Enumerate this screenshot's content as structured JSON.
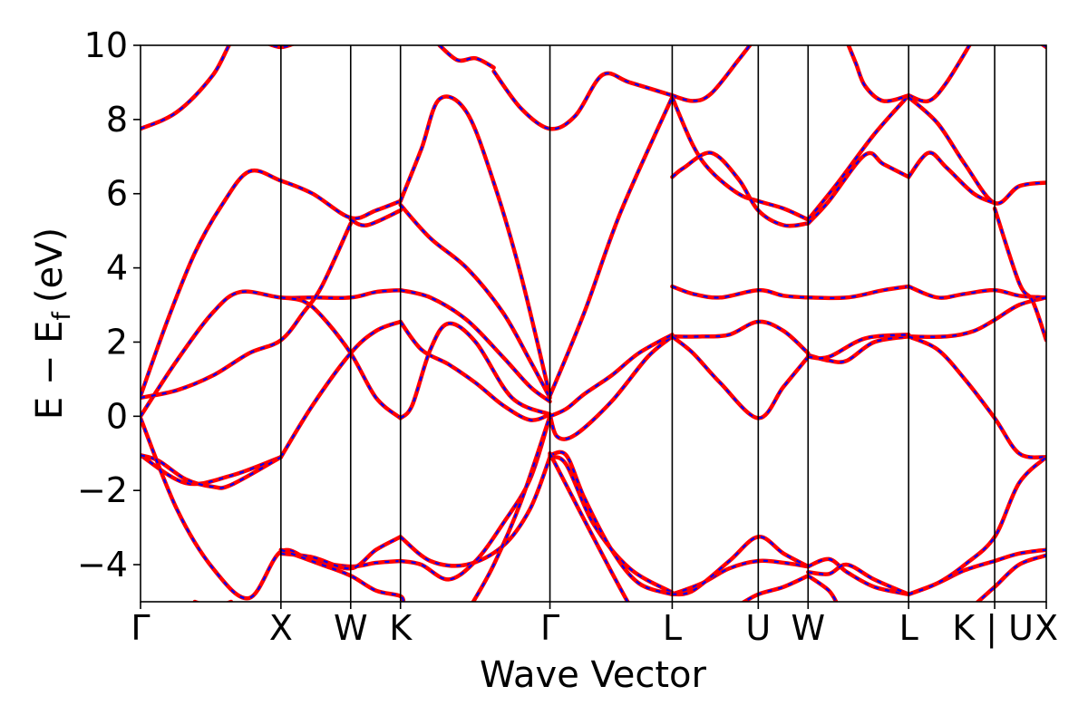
{
  "chart_data": {
    "type": "line",
    "title": "",
    "xlabel": "Wave Vector",
    "ylabel": "E − E",
    "ylabel_subscript": "f",
    "ylabel_unit": "(eV)",
    "ylim": [
      -5,
      10
    ],
    "yticks": [
      -4,
      -2,
      0,
      2,
      4,
      6,
      8,
      10
    ],
    "ytick_labels": [
      "−4",
      "−2",
      "0",
      "2",
      "4",
      "6",
      "8",
      "10"
    ],
    "xlim": [
      0,
      10
    ],
    "kpoints": [
      {
        "label": "Γ",
        "x": 0.0
      },
      {
        "label": "X",
        "x": 1.55
      },
      {
        "label": "W",
        "x": 2.32
      },
      {
        "label": "K",
        "x": 2.87
      },
      {
        "label": "Γ",
        "x": 4.52
      },
      {
        "label": "L",
        "x": 5.87
      },
      {
        "label": "U",
        "x": 6.82
      },
      {
        "label": "W",
        "x": 7.37
      },
      {
        "label": "L",
        "x": 8.48
      },
      {
        "label": "K | U",
        "x": 9.43
      },
      {
        "label": "X",
        "x": 10.0
      }
    ],
    "grid": false,
    "line_colors": {
      "series_a": "#ff0000",
      "series_b": "#0000ff"
    },
    "series": [
      {
        "x": [
          0,
          0.4,
          0.8,
          1.1,
          1.55
        ],
        "y": [
          7.75,
          8.2,
          9.2,
          10.4,
          10.5
        ]
      },
      {
        "x": [
          1.35,
          1.55,
          1.75
        ],
        "y": [
          10.1,
          9.95,
          10.1
        ]
      },
      {
        "x": [
          9.85,
          10.0
        ],
        "y": [
          10.2,
          9.95
        ]
      },
      {
        "x": [
          0,
          0.3,
          0.6,
          0.9,
          1.2,
          1.55,
          1.9,
          2.32,
          2.6,
          2.87
        ],
        "y": [
          0.55,
          2.6,
          4.4,
          5.7,
          6.6,
          6.35,
          6.0,
          5.35,
          5.55,
          5.8
        ]
      },
      {
        "x": [
          2.32,
          2.5,
          2.87
        ],
        "y": [
          5.3,
          5.15,
          5.55
        ]
      },
      {
        "x": [
          0,
          0.4,
          0.8,
          1.1,
          1.55,
          1.9,
          2.32,
          2.6,
          2.87
        ],
        "y": [
          0.0,
          1.5,
          2.8,
          3.35,
          3.2,
          3.2,
          3.2,
          3.35,
          3.4
        ]
      },
      {
        "x": [
          0,
          0.4,
          0.8,
          1.2,
          1.55,
          1.8,
          2.0,
          2.32
        ],
        "y": [
          0.5,
          0.7,
          1.1,
          1.7,
          2.05,
          2.8,
          3.5,
          5.2
        ]
      },
      {
        "x": [
          1.55,
          1.8,
          2.0,
          2.32,
          2.6,
          2.87
        ],
        "y": [
          3.2,
          3.1,
          2.7,
          1.7,
          0.5,
          -0.05
        ]
      },
      {
        "x": [
          1.55,
          1.9,
          2.32,
          2.6,
          2.87
        ],
        "y": [
          -1.1,
          0.3,
          1.7,
          2.3,
          2.55
        ]
      },
      {
        "x": [
          0,
          0.5,
          1.0,
          1.55
        ],
        "y": [
          -1.05,
          -1.8,
          -1.6,
          -1.1
        ]
      },
      {
        "x": [
          0,
          0.2,
          0.5,
          0.8,
          1.0,
          1.55
        ],
        "y": [
          -1.05,
          -1.2,
          -1.7,
          -1.9,
          -1.85,
          -1.1
        ]
      },
      {
        "x": [
          0,
          0.4,
          0.8,
          1.2,
          1.55,
          1.9,
          2.32,
          2.6,
          2.87
        ],
        "y": [
          -0.05,
          -2.5,
          -4.1,
          -4.9,
          -3.65,
          -3.9,
          -4.05,
          -3.95,
          -3.9
        ]
      },
      {
        "x": [
          0.6,
          0.8,
          1.0
        ],
        "y": [
          -5.0,
          -5.15,
          -5.0
        ]
      },
      {
        "x": [
          1.55,
          1.9,
          2.32,
          2.6,
          2.87
        ],
        "y": [
          -3.7,
          -3.8,
          -4.1,
          -3.6,
          -3.25
        ]
      },
      {
        "x": [
          1.55,
          2.0,
          2.32,
          2.6,
          2.87,
          2.9
        ],
        "y": [
          -3.6,
          -4.0,
          -4.3,
          -4.7,
          -4.85,
          -5.1
        ]
      },
      {
        "x": [
          2.87,
          3.1,
          3.3,
          3.6,
          3.9,
          4.2,
          4.52
        ],
        "y": [
          5.8,
          7.2,
          8.55,
          8.2,
          6.3,
          3.8,
          0.55
        ]
      },
      {
        "x": [
          3.3,
          3.5,
          3.7,
          3.9
        ],
        "y": [
          10.0,
          9.6,
          9.65,
          9.4
        ]
      },
      {
        "x": [
          3.9,
          4.2,
          4.52,
          4.8,
          5.1,
          5.4,
          5.87
        ],
        "y": [
          9.3,
          8.3,
          7.75,
          8.1,
          9.2,
          9.0,
          8.65
        ]
      },
      {
        "x": [
          2.87,
          3.2,
          3.6,
          4.0,
          4.3,
          4.52
        ],
        "y": [
          5.7,
          4.8,
          4.0,
          2.8,
          1.5,
          0.5
        ]
      },
      {
        "x": [
          2.87,
          3.2,
          3.6,
          4.0,
          4.3,
          4.52
        ],
        "y": [
          3.4,
          3.2,
          2.6,
          1.6,
          0.8,
          0.4
        ]
      },
      {
        "x": [
          2.87,
          3.1,
          3.4,
          3.7,
          4.0,
          4.3,
          4.52
        ],
        "y": [
          2.55,
          1.8,
          1.4,
          0.9,
          0.3,
          -0.1,
          0.05
        ]
      },
      {
        "x": [
          2.87,
          3.0,
          3.2,
          3.4,
          3.7,
          4.1,
          4.52
        ],
        "y": [
          -0.05,
          0.3,
          1.8,
          2.5,
          2.0,
          0.5,
          0.05
        ]
      },
      {
        "x": [
          2.87,
          3.2,
          3.6,
          4.0,
          4.3,
          4.52
        ],
        "y": [
          -3.25,
          -3.9,
          -4.0,
          -3.5,
          -2.5,
          -1.1
        ]
      },
      {
        "x": [
          2.87,
          3.1,
          3.4,
          3.7,
          4.0,
          4.3,
          4.52
        ],
        "y": [
          -3.9,
          -4.0,
          -4.4,
          -3.9,
          -2.9,
          -1.7,
          0.0
        ]
      },
      {
        "x": [
          3.65,
          3.9,
          4.2,
          4.52
        ],
        "y": [
          -5.1,
          -4.0,
          -2.3,
          0.0
        ]
      },
      {
        "x": [
          4.52,
          4.9,
          5.3,
          5.87
        ],
        "y": [
          0.55,
          2.8,
          5.5,
          8.6
        ]
      },
      {
        "x": [
          4.52,
          4.6,
          4.8,
          5.2,
          5.6,
          5.87
        ],
        "y": [
          0.05,
          -0.55,
          -0.5,
          0.4,
          1.6,
          2.15
        ]
      },
      {
        "x": [
          4.52,
          4.7,
          4.9,
          5.2,
          5.5,
          5.87
        ],
        "y": [
          0.0,
          0.2,
          0.6,
          1.1,
          1.7,
          2.2
        ]
      },
      {
        "x": [
          4.52,
          4.7,
          5.0,
          5.4,
          5.87
        ],
        "y": [
          -1.1,
          -1.3,
          -2.9,
          -4.1,
          -4.75
        ]
      },
      {
        "x": [
          4.52,
          4.7,
          4.9,
          5.2,
          5.5,
          5.87
        ],
        "y": [
          -1.05,
          -1.05,
          -2.2,
          -3.6,
          -4.5,
          -4.8
        ]
      },
      {
        "x": [
          4.52,
          4.9,
          5.2,
          5.4
        ],
        "y": [
          -1.0,
          -2.8,
          -4.2,
          -5.1
        ]
      },
      {
        "x": [
          5.87,
          6.1,
          6.3,
          6.6,
          6.82
        ],
        "y": [
          8.65,
          8.5,
          8.7,
          9.6,
          10.3
        ]
      },
      {
        "x": [
          5.87,
          6.1,
          6.3,
          6.6,
          6.82,
          7.1,
          7.37
        ],
        "y": [
          8.6,
          7.3,
          6.6,
          6.0,
          5.8,
          5.6,
          5.3
        ]
      },
      {
        "x": [
          5.87,
          6.0,
          6.3,
          6.6,
          6.82,
          7.1,
          7.37
        ],
        "y": [
          6.45,
          6.7,
          7.1,
          6.4,
          5.55,
          5.15,
          5.2
        ]
      },
      {
        "x": [
          5.87,
          6.1,
          6.4,
          6.82,
          7.1,
          7.37
        ],
        "y": [
          3.5,
          3.3,
          3.2,
          3.4,
          3.25,
          3.2
        ]
      },
      {
        "x": [
          5.87,
          6.2,
          6.5,
          6.82,
          7.1,
          7.37
        ],
        "y": [
          2.15,
          2.15,
          2.2,
          2.55,
          2.3,
          1.7
        ]
      },
      {
        "x": [
          5.87,
          6.1,
          6.4,
          6.82,
          7.1,
          7.37
        ],
        "y": [
          2.15,
          1.7,
          0.9,
          -0.05,
          0.8,
          1.6
        ]
      },
      {
        "x": [
          5.87,
          6.2,
          6.5,
          6.82,
          7.1,
          7.37
        ],
        "y": [
          -4.8,
          -4.5,
          -4.1,
          -3.9,
          -3.95,
          -4.05
        ]
      },
      {
        "x": [
          5.87,
          6.1,
          6.5,
          6.82,
          7.1,
          7.37
        ],
        "y": [
          -4.8,
          -4.7,
          -3.9,
          -3.25,
          -3.7,
          -4.05
        ]
      },
      {
        "x": [
          6.6,
          6.82,
          7.1,
          7.37
        ],
        "y": [
          -5.1,
          -4.8,
          -4.6,
          -4.3
        ]
      },
      {
        "x": [
          7.37,
          7.7,
          8.1,
          8.48
        ],
        "y": [
          5.3,
          6.3,
          7.6,
          8.65
        ]
      },
      {
        "x": [
          7.37,
          7.6,
          8.0,
          8.2,
          8.48
        ],
        "y": [
          5.2,
          5.8,
          7.05,
          6.8,
          6.45
        ]
      },
      {
        "x": [
          7.37,
          7.8,
          8.2,
          8.48
        ],
        "y": [
          3.2,
          3.2,
          3.4,
          3.5
        ]
      },
      {
        "x": [
          7.37,
          7.6,
          7.8,
          8.1,
          8.48
        ],
        "y": [
          1.65,
          1.5,
          1.5,
          2.0,
          2.15
        ]
      },
      {
        "x": [
          7.37,
          7.6,
          8.0,
          8.48
        ],
        "y": [
          1.6,
          1.6,
          2.1,
          2.2
        ]
      },
      {
        "x": [
          7.37,
          7.6,
          7.8,
          8.1,
          8.48
        ],
        "y": [
          -4.05,
          -3.85,
          -4.2,
          -4.6,
          -4.8
        ]
      },
      {
        "x": [
          7.37,
          7.6,
          7.8,
          8.1,
          8.48
        ],
        "y": [
          -4.2,
          -4.25,
          -4.0,
          -4.4,
          -4.8
        ]
      },
      {
        "x": [
          7.37,
          7.6,
          7.7
        ],
        "y": [
          -4.3,
          -4.7,
          -5.1
        ]
      },
      {
        "x": [
          7.8,
          7.9,
          8.0,
          8.2,
          8.48
        ],
        "y": [
          10.1,
          9.5,
          8.9,
          8.5,
          8.65
        ]
      },
      {
        "x": [
          8.48,
          8.7,
          8.9,
          9.2
        ],
        "y": [
          8.65,
          8.5,
          9.0,
          10.2
        ]
      },
      {
        "x": [
          8.48,
          8.8,
          9.1,
          9.43,
          9.7,
          10.0
        ],
        "y": [
          8.6,
          7.9,
          6.8,
          5.75,
          6.2,
          6.3
        ]
      },
      {
        "x": [
          8.48,
          8.7,
          8.9,
          9.2,
          9.43
        ],
        "y": [
          6.45,
          7.1,
          6.7,
          6.0,
          5.75
        ]
      },
      {
        "x": [
          8.48,
          8.8,
          9.1,
          9.43,
          9.7,
          10.0
        ],
        "y": [
          3.5,
          3.2,
          3.3,
          3.4,
          3.25,
          3.2
        ]
      },
      {
        "x": [
          8.48,
          8.9,
          9.2,
          9.43,
          9.7,
          10.0
        ],
        "y": [
          2.15,
          2.15,
          2.3,
          2.6,
          3.0,
          3.2
        ]
      },
      {
        "x": [
          9.43,
          9.7,
          9.85,
          10.0
        ],
        "y": [
          5.6,
          3.6,
          3.1,
          2.05
        ]
      },
      {
        "x": [
          8.48,
          8.8,
          9.1,
          9.43,
          9.7,
          10.0
        ],
        "y": [
          2.15,
          1.8,
          1.0,
          -0.05,
          -1.0,
          -1.1
        ]
      },
      {
        "x": [
          8.48,
          8.8,
          9.1,
          9.43,
          9.7,
          10.0
        ],
        "y": [
          -4.8,
          -4.5,
          -4.15,
          -3.9,
          -3.7,
          -3.6
        ]
      },
      {
        "x": [
          8.48,
          8.8,
          9.1,
          9.43,
          9.7,
          10.0
        ],
        "y": [
          -4.8,
          -4.5,
          -4.0,
          -3.25,
          -1.8,
          -1.1
        ]
      },
      {
        "x": [
          9.2,
          9.43,
          9.7,
          10.0
        ],
        "y": [
          -5.1,
          -4.6,
          -4.0,
          -3.75
        ]
      }
    ]
  }
}
